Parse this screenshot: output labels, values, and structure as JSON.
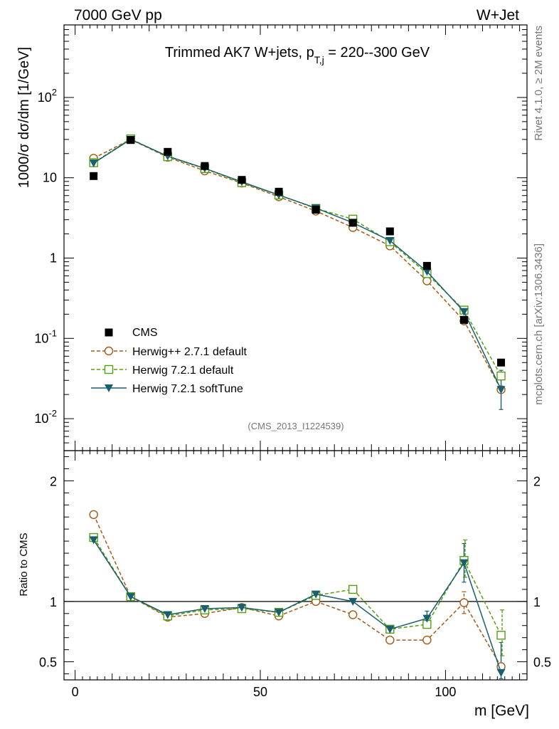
{
  "header": {
    "left": "7000 GeV pp",
    "right": "W+Jet"
  },
  "side_labels": {
    "rivet": "Rivet 4.1.0, ≥ 2M events",
    "mcplots": "mcplots.cern.ch [arXiv:1306.3436]"
  },
  "colors": {
    "cms": "#000000",
    "herwigpp": "#a35a14",
    "herwig_default": "#52a012",
    "herwig_soft": "#1a5e70"
  },
  "chart_data": [
    {
      "type": "scatter",
      "title": "Trimmed AK7 W+jets, p_T,j = 220--300 GeV",
      "title_parts": {
        "prefix": "Trimmed AK7 W+jets, p",
        "sub": "T,j",
        "suffix": " = 220--300 GeV"
      },
      "ylabel": "1000/σ  dσ/dm [1/GeV]",
      "yscale": "log",
      "ylim": [
        0.004,
        800
      ],
      "yticks": [
        {
          "v": 0.01,
          "base": "10",
          "exp": "-2"
        },
        {
          "v": 0.1,
          "base": "10",
          "exp": "-1"
        },
        {
          "v": 1,
          "base": "1",
          "exp": ""
        },
        {
          "v": 10,
          "base": "10",
          "exp": ""
        },
        {
          "v": 100,
          "base": "10",
          "exp": "2"
        }
      ],
      "xlim": [
        -3,
        122
      ],
      "x": [
        5,
        15,
        25,
        35,
        45,
        55,
        65,
        75,
        85,
        95,
        105,
        115
      ],
      "watermark": "(CMS_2013_I1224539)",
      "legend": "left",
      "series": [
        {
          "name": "CMS",
          "marker": "filled-square",
          "line": "none",
          "values": [
            10.5,
            29.5,
            21,
            14,
            9.4,
            6.7,
            4.0,
            2.75,
            2.15,
            0.8,
            0.17,
            0.05
          ]
        },
        {
          "name": "Herwig++ 2.7.1 default",
          "marker": "open-circle",
          "line": "dashed",
          "values": [
            17.5,
            30.0,
            18.0,
            12.2,
            8.6,
            5.8,
            3.85,
            2.4,
            1.42,
            0.52,
            0.165,
            0.023
          ]
        },
        {
          "name": "Herwig 7.2.1 default",
          "marker": "open-square",
          "line": "dashed",
          "values": [
            15.4,
            30.5,
            18.3,
            13.0,
            8.7,
            6.1,
            4.15,
            3.05,
            1.6,
            0.64,
            0.225,
            0.034
          ]
        },
        {
          "name": "Herwig 7.2.1 softTune",
          "marker": "filled-triangle-down",
          "line": "solid",
          "values": [
            15.2,
            30.0,
            18.6,
            13.1,
            8.9,
            6.1,
            4.2,
            2.75,
            1.65,
            0.68,
            0.215,
            0.023
          ]
        }
      ],
      "errors": [
        {
          "series": "Herwig 7.2.1 softTune",
          "index": 11,
          "low": 0.013,
          "high": 0.04
        }
      ]
    },
    {
      "type": "line",
      "ylabel": "Ratio to CMS",
      "xlabel": "m [GeV]",
      "ylim": [
        0.35,
        2.25
      ],
      "yticks": [
        0.5,
        1,
        2
      ],
      "ytick_labels": [
        "0.5",
        "1",
        "2"
      ],
      "xlim": [
        -3,
        122
      ],
      "xticks": [
        0,
        50,
        100
      ],
      "xtick_labels": [
        "0",
        "50",
        "100"
      ],
      "reference": 1,
      "x": [
        5,
        15,
        25,
        35,
        45,
        55,
        65,
        75,
        85,
        95,
        105,
        115
      ],
      "series": [
        {
          "name": "Herwig++ 2.7.1 default",
          "marker": "open-circle",
          "line": "dashed",
          "values": [
            1.72,
            1.04,
            0.87,
            0.9,
            0.95,
            0.88,
            1.0,
            0.89,
            0.68,
            0.68,
            0.99,
            0.46
          ]
        },
        {
          "name": "Herwig 7.2.1 default",
          "marker": "open-square",
          "line": "dashed",
          "values": [
            1.53,
            1.04,
            0.88,
            0.93,
            0.94,
            0.91,
            1.05,
            1.1,
            0.77,
            0.81,
            1.34,
            0.72
          ]
        },
        {
          "name": "Herwig 7.2.1 softTune",
          "marker": "filled-triangle-down",
          "line": "solid",
          "values": [
            1.51,
            1.04,
            0.89,
            0.94,
            0.95,
            0.91,
            1.06,
            1.0,
            0.77,
            0.86,
            1.32,
            0.41
          ]
        }
      ],
      "errors": [
        {
          "series": "Herwig 7.2.1 softTune",
          "index": 9,
          "low": 0.81,
          "high": 0.92
        },
        {
          "series": "Herwig 7.2.1 softTune",
          "index": 10,
          "low": 1.16,
          "high": 1.48
        },
        {
          "series": "Herwig 7.2.1 softTune",
          "index": 11,
          "low": 0.36,
          "high": 0.66
        },
        {
          "series": "Herwig 7.2.1 default",
          "index": 10,
          "low": 1.2,
          "high": 1.51
        },
        {
          "series": "Herwig 7.2.1 default",
          "index": 11,
          "low": 0.55,
          "high": 0.93
        },
        {
          "series": "Herwig++ 2.7.1 default",
          "index": 10,
          "low": 0.9,
          "high": 1.08
        }
      ]
    }
  ]
}
